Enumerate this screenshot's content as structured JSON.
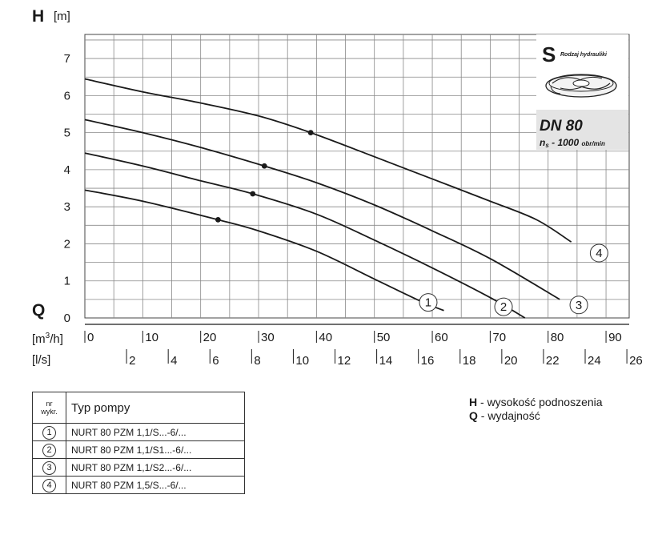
{
  "chart_data": {
    "type": "line",
    "y_symbol": "H",
    "y_unit": "[m]",
    "x_symbol": "Q",
    "x_unit_m3h_prefix": "[m",
    "x_unit_m3h_sup": "3",
    "x_unit_m3h_suffix": "/h]",
    "x_unit_ls": "[l/s]",
    "y_ticks": [
      "0",
      "1",
      "2",
      "3",
      "4",
      "5",
      "6",
      "7"
    ],
    "ylim": [
      0,
      7.65
    ],
    "xlim": [
      0,
      94
    ],
    "x_ticks_m3h": [
      "0",
      "10",
      "20",
      "30",
      "40",
      "50",
      "60",
      "70",
      "80",
      "90"
    ],
    "x_ticks_ls": [
      "2",
      "4",
      "6",
      "8",
      "10",
      "12",
      "14",
      "16",
      "18",
      "20",
      "22",
      "24",
      "26"
    ],
    "grid": true,
    "series": [
      {
        "name": "1",
        "x": [
          0,
          10,
          23,
          30,
          40,
          50,
          58,
          62
        ],
        "y": [
          3.45,
          3.15,
          2.65,
          2.35,
          1.8,
          1.05,
          0.45,
          0.2
        ],
        "marker_x": 23,
        "marker_y": 2.65
      },
      {
        "name": "2",
        "x": [
          0,
          10,
          20,
          29,
          40,
          50,
          60,
          70,
          76
        ],
        "y": [
          4.45,
          4.1,
          3.7,
          3.35,
          2.8,
          2.1,
          1.35,
          0.55,
          0
        ]
      },
      {
        "name": "3",
        "x": [
          0,
          10,
          20,
          31,
          40,
          50,
          60,
          70,
          82
        ],
        "y": [
          5.35,
          5.0,
          4.6,
          4.1,
          3.65,
          3.05,
          2.35,
          1.6,
          0.5
        ]
      },
      {
        "name": "4",
        "x": [
          0,
          10,
          20,
          30,
          39,
          50,
          60,
          70,
          78,
          84
        ],
        "y": [
          6.45,
          6.1,
          5.8,
          5.45,
          5.0,
          4.35,
          3.75,
          3.15,
          2.65,
          2.05
        ]
      }
    ],
    "markers": [
      {
        "series": "1",
        "x": 23,
        "y": 2.65
      },
      {
        "series": "2",
        "x": 29,
        "y": 3.35
      },
      {
        "series": "3",
        "x": 31,
        "y": 4.1
      },
      {
        "series": "4",
        "x": 39,
        "y": 5.0
      }
    ],
    "curve_labels": [
      {
        "text": "1",
        "x": 59.3,
        "y": 0.42
      },
      {
        "text": "2",
        "x": 72.3,
        "y": 0.3
      },
      {
        "text": "3",
        "x": 85.3,
        "y": 0.35
      },
      {
        "text": "4",
        "x": 88.8,
        "y": 1.75
      }
    ]
  },
  "info_box": {
    "s_letter": "S",
    "s_label": "Rodzaj hydrauliki",
    "dn": "DN 80",
    "ns_prefix": "n",
    "ns_sub": "s",
    "ns_value": " - 1000 ",
    "ns_unit": "obr/min"
  },
  "legend_table": {
    "header_nr_line1": "nr",
    "header_nr_line2": "wykr.",
    "header_type": "Typ pompy",
    "rows": [
      {
        "num": "1",
        "name": "NURT 80 PZM 1,1/S...-6/..."
      },
      {
        "num": "2",
        "name": "NURT 80 PZM 1,1/S1...-6/..."
      },
      {
        "num": "3",
        "name": "NURT 80 PZM 1,1/S2...-6/..."
      },
      {
        "num": "4",
        "name": "NURT 80 PZM 1,5/S...-6/..."
      }
    ]
  },
  "notes": {
    "h_key": "H",
    "h_text": " - wysokość podnoszenia",
    "q_key": "Q",
    "q_text": " - wydajność"
  },
  "colors": {
    "curve": "#1a1a1a",
    "grid": "#888888",
    "info_box_bg": "#e4e4e4"
  }
}
